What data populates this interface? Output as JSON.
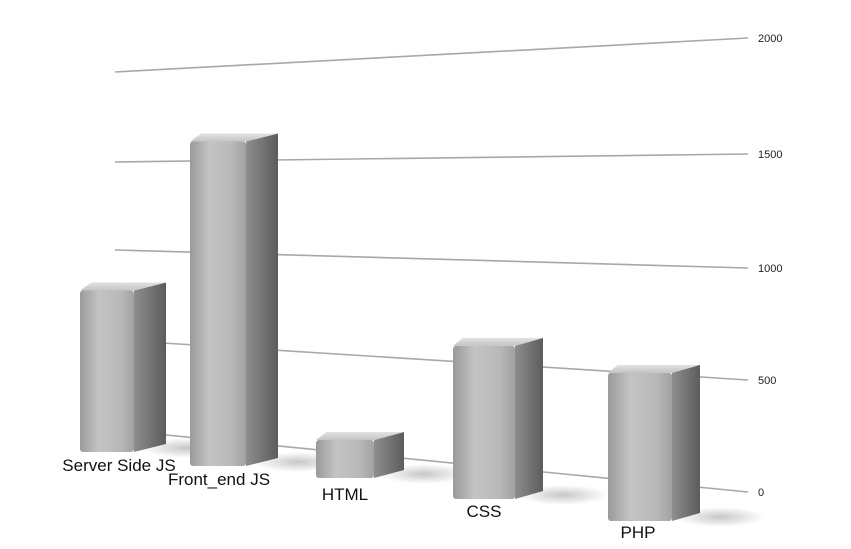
{
  "chart_data": {
    "type": "bar",
    "categories": [
      "Server Side JS",
      "Front_end JS",
      "HTML",
      "CSS",
      "PHP"
    ],
    "values": [
      950,
      1560,
      190,
      870,
      920
    ],
    "ylim": [
      0,
      2000
    ],
    "yticks": [
      0,
      500,
      1000,
      1500,
      2000
    ],
    "grid": true,
    "legend": "none",
    "colors": {
      "bar_front": "#b4b4b4",
      "bar_side": "#7a7a7a",
      "bar_top": "#d8d8d8",
      "grid": "#a8a8a8"
    }
  }
}
